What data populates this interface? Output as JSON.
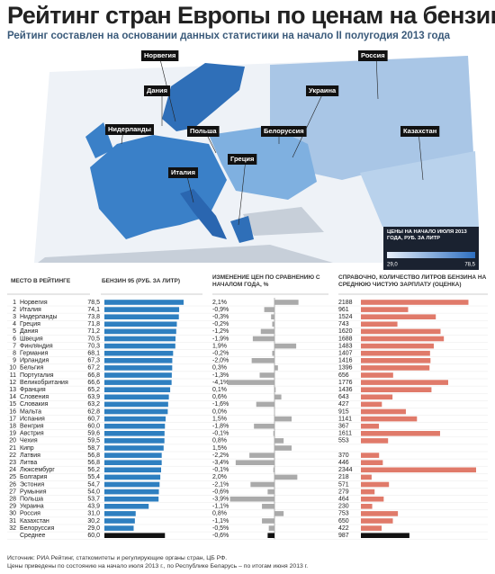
{
  "title": "Рейтинг стран Европы по ценам на бензин",
  "subtitle": "Рейтинг составлен на основании данных статистики на начало II полугодия 2013 года",
  "map": {
    "labels": [
      "Норвегия",
      "Дания",
      "Нидерланды",
      "Польша",
      "Белоруссия",
      "Украина",
      "Россия",
      "Казахстан",
      "Италия",
      "Греция"
    ],
    "legend": {
      "title": "ЦЕНЫ НА НАЧАЛО ИЮЛЯ 2013 ГОДА, РУБ. ЗА ЛИТР",
      "min": {
        "value": 29.0,
        "label": "29,0"
      },
      "max": {
        "value": 78.5,
        "label": "78,5"
      },
      "colors": [
        "#e8f0fa",
        "#2e6fc0"
      ]
    }
  },
  "average_color": "#111111",
  "chart_data": [
    {
      "type": "bar",
      "title": "БЕНЗИН 95 (РУБ. ЗА ЛИТР)",
      "rank_header": "МЕСТО В РЕЙТИНГЕ",
      "ranks": [
        1,
        2,
        3,
        4,
        5,
        6,
        7,
        8,
        9,
        10,
        11,
        12,
        13,
        14,
        15,
        16,
        17,
        18,
        19,
        20,
        21,
        22,
        23,
        24,
        25,
        26,
        27,
        28,
        29,
        30,
        31,
        32
      ],
      "categories": [
        "Норвегия",
        "Италия",
        "Нидерланды",
        "Греция",
        "Дания",
        "Швеция",
        "Финляндия",
        "Германия",
        "Ирландия",
        "Бельгия",
        "Португалия",
        "Великобритания",
        "Франция",
        "Словения",
        "Словакия",
        "Мальта",
        "Испания",
        "Венгрия",
        "Австрия",
        "Чехия",
        "Кипр",
        "Латвия",
        "Литва",
        "Люксембург",
        "Болгария",
        "Эстония",
        "Румыния",
        "Польша",
        "Украина",
        "Россия",
        "Казахстан",
        "Белоруссия",
        "Среднее"
      ],
      "values": [
        78.5,
        74.1,
        73.8,
        71.8,
        71.2,
        70.5,
        70.3,
        68.1,
        67.3,
        67.2,
        66.8,
        66.6,
        65.2,
        63.9,
        63.2,
        62.8,
        60.7,
        60.0,
        59.6,
        59.5,
        58.7,
        56.8,
        56.8,
        56.2,
        55.4,
        54.7,
        54.0,
        53.7,
        43.9,
        31.0,
        30.2,
        29.0,
        60.0
      ],
      "value_labels": [
        "78,5",
        "74,1",
        "73,8",
        "71,8",
        "71,2",
        "70,5",
        "70,3",
        "68,1",
        "67,3",
        "67,2",
        "66,8",
        "66,6",
        "65,2",
        "63,9",
        "63,2",
        "62,8",
        "60,7",
        "60,0",
        "59,6",
        "59,5",
        "58,7",
        "56,8",
        "56,8",
        "56,2",
        "55,4",
        "54,7",
        "54,0",
        "53,7",
        "43,9",
        "31,0",
        "30,2",
        "29,0",
        "60,0"
      ],
      "color": "#2e7fc0"
    },
    {
      "type": "diverging",
      "title": "ИЗМЕНЕНИЕ ЦЕН ПО СРАВНЕНИЮ С НАЧАЛОМ ГОДА, %",
      "values": [
        2.1,
        -0.9,
        -0.3,
        -0.2,
        -1.2,
        -1.9,
        1.9,
        -0.2,
        -2.0,
        0.3,
        -1.3,
        -4.1,
        0.1,
        0.6,
        -1.6,
        0.0,
        1.5,
        -1.8,
        -0.1,
        0.8,
        1.5,
        -2.2,
        -3.4,
        -0.1,
        2.0,
        -2.1,
        -0.6,
        -3.9,
        -1.1,
        0.8,
        -1.1,
        -0.5,
        -0.6
      ],
      "value_labels": [
        "2,1%",
        "-0,9%",
        "-0,3%",
        "-0,2%",
        "-1,2%",
        "-1,9%",
        "1,9%",
        "-0,2%",
        "-2,0%",
        "0,3%",
        "-1,3%",
        "-4,1%",
        "0,1%",
        "0,6%",
        "-1,6%",
        "0,0%",
        "1,5%",
        "-1,8%",
        "-0,1%",
        "0,8%",
        "1,5%",
        "-2,2%",
        "-3,4%",
        "-0,1%",
        "2,0%",
        "-2,1%",
        "-0,6%",
        "-3,9%",
        "-1,1%",
        "0,8%",
        "-1,1%",
        "-0,5%",
        "-0,6%"
      ],
      "color": "#aaaaaa"
    },
    {
      "type": "bar",
      "title": "СПРАВОЧНО, КОЛИЧЕСТВО ЛИТРОВ БЕНЗИНА НА СРЕДНЮЮ ЧИСТУЮ ЗАРПЛАТУ (ОЦЕНКА)",
      "values": [
        2188,
        961,
        1524,
        743,
        1620,
        1688,
        1483,
        1407,
        1416,
        1396,
        656,
        1776,
        1436,
        643,
        427,
        915,
        1141,
        367,
        1611,
        553,
        null,
        370,
        446,
        2344,
        218,
        571,
        279,
        464,
        230,
        753,
        650,
        422,
        987
      ],
      "color": "#e07a6a"
    }
  ],
  "footer": [
    "Источник: РИА Рейтинг, статкомитеты и регулирующие органы стран, ЦБ РФ.",
    "Цены приведены по состоянию на начало июля 2013 г., по Республике Беларусь – по итогам июня 2013 г."
  ]
}
